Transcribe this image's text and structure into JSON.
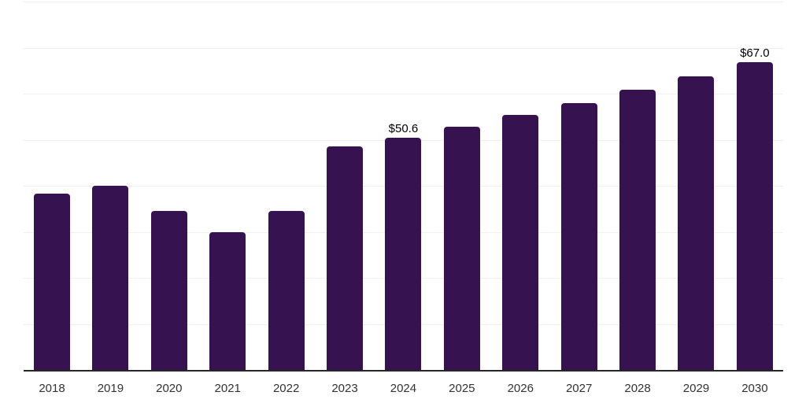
{
  "chart_data": {
    "type": "bar",
    "title": "",
    "xlabel": "",
    "ylabel": "",
    "categories": [
      "2018",
      "2019",
      "2020",
      "2021",
      "2022",
      "2023",
      "2024",
      "2025",
      "2026",
      "2027",
      "2028",
      "2029",
      "2030"
    ],
    "values": [
      38.5,
      40.2,
      34.7,
      30.0,
      34.7,
      48.8,
      50.6,
      53.0,
      55.6,
      58.2,
      61.0,
      63.9,
      67.0
    ],
    "point_labels": [
      "",
      "",
      "",
      "",
      "",
      "",
      "$50.6",
      "",
      "",
      "",
      "",
      "",
      "$67.0"
    ],
    "ylim": [
      0,
      80
    ],
    "gridline_step": 10,
    "grid": "horizontal-only",
    "y_tick_labels_visible": false,
    "legend_position": "none"
  },
  "colors": {
    "bar": "#371250",
    "axis_line": "#262626",
    "gridline": "#f0f0f0",
    "tick_label": "#333333",
    "data_label": "#000000",
    "background": "#ffffff"
  }
}
